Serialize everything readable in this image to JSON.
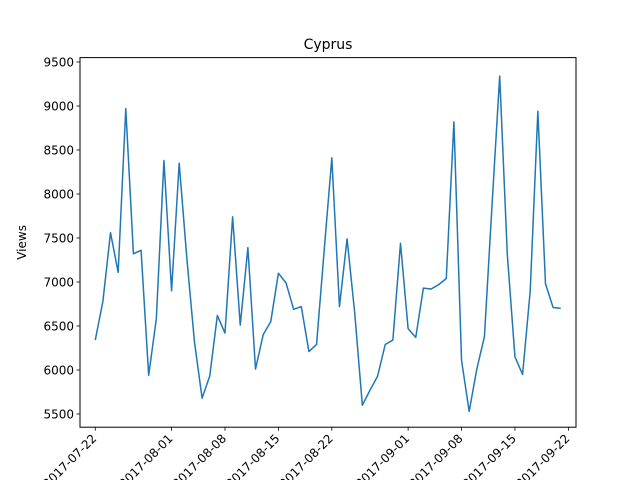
{
  "chart_data": {
    "type": "line",
    "title": "Cyprus",
    "xlabel": "",
    "ylabel": "Views",
    "grid": false,
    "legend": "none",
    "ylim": [
      5350,
      9550
    ],
    "xlim": [
      "2017-07-20",
      "2017-09-23"
    ],
    "y_ticks": [
      5500,
      6000,
      6500,
      7000,
      7500,
      8000,
      8500,
      9000,
      9500
    ],
    "y_tick_labels": [
      "5500",
      "6000",
      "6500",
      "7000",
      "7500",
      "8000",
      "8500",
      "9000",
      "9500"
    ],
    "x_ticks": [
      "2017-07-22",
      "2017-08-01",
      "2017-08-08",
      "2017-08-15",
      "2017-08-22",
      "2017-09-01",
      "2017-09-08",
      "2017-09-15",
      "2017-09-22"
    ],
    "x_tick_labels": [
      "2017-07-22",
      "2017-08-01",
      "2017-08-08",
      "2017-08-15",
      "2017-08-22",
      "2017-09-01",
      "2017-09-08",
      "2017-09-15",
      "2017-09-22"
    ],
    "series": [
      {
        "color": "#1f77b4",
        "x": [
          "2017-07-22",
          "2017-07-23",
          "2017-07-24",
          "2017-07-25",
          "2017-07-26",
          "2017-07-27",
          "2017-07-28",
          "2017-07-29",
          "2017-07-30",
          "2017-07-31",
          "2017-08-01",
          "2017-08-02",
          "2017-08-03",
          "2017-08-04",
          "2017-08-05",
          "2017-08-06",
          "2017-08-07",
          "2017-08-08",
          "2017-08-09",
          "2017-08-10",
          "2017-08-11",
          "2017-08-12",
          "2017-08-13",
          "2017-08-14",
          "2017-08-15",
          "2017-08-16",
          "2017-08-17",
          "2017-08-18",
          "2017-08-19",
          "2017-08-20",
          "2017-08-21",
          "2017-08-22",
          "2017-08-23",
          "2017-08-24",
          "2017-08-25",
          "2017-08-26",
          "2017-08-27",
          "2017-08-28",
          "2017-08-29",
          "2017-08-30",
          "2017-08-31",
          "2017-09-01",
          "2017-09-02",
          "2017-09-03",
          "2017-09-04",
          "2017-09-05",
          "2017-09-06",
          "2017-09-07",
          "2017-09-08",
          "2017-09-09",
          "2017-09-10",
          "2017-09-11",
          "2017-09-12",
          "2017-09-13",
          "2017-09-14",
          "2017-09-15",
          "2017-09-16",
          "2017-09-17",
          "2017-09-18",
          "2017-09-19",
          "2017-09-20",
          "2017-09-21"
        ],
        "values": [
          6340,
          6780,
          7560,
          7110,
          8970,
          7320,
          7360,
          5940,
          6580,
          8380,
          6900,
          8350,
          7270,
          6320,
          5680,
          5930,
          6620,
          6420,
          7740,
          6510,
          7390,
          6010,
          6400,
          6550,
          7100,
          6990,
          6690,
          6720,
          6210,
          6290,
          7360,
          8410,
          6720,
          7490,
          6650,
          5600,
          5770,
          5930,
          6290,
          6340,
          7440,
          6470,
          6370,
          6930,
          6920,
          6970,
          7040,
          8820,
          6110,
          5530,
          6010,
          6380,
          7880,
          9340,
          7310,
          6150,
          5950,
          6900,
          8940,
          6980,
          6710,
          6700
        ]
      }
    ]
  }
}
